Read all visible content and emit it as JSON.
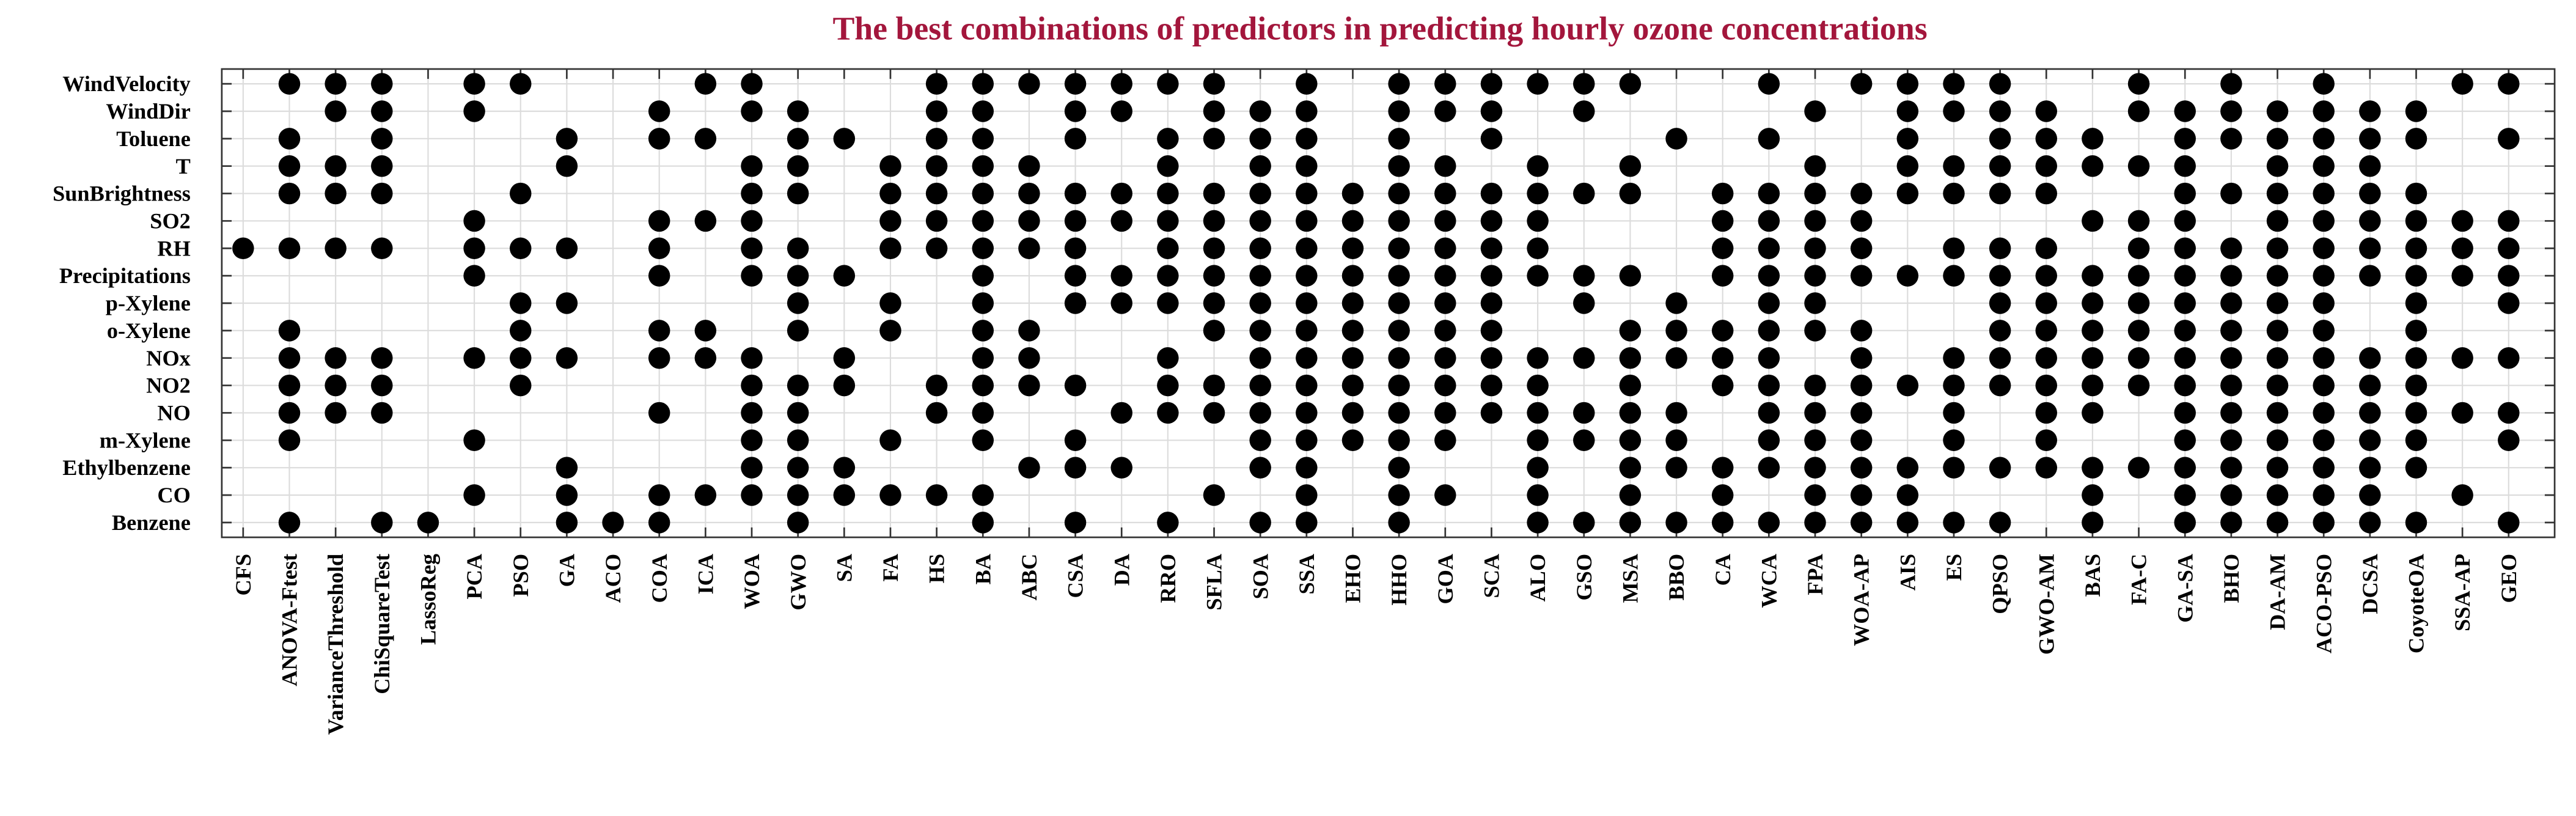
{
  "chart_data": {
    "type": "dot_matrix",
    "title": "The best combinations of predictors in predicting hourly ozone concentrations",
    "title_color": "#a3163c",
    "color": "#000000",
    "grid": true,
    "rows": [
      "WindVelocity",
      "WindDir",
      "Toluene",
      "T",
      "SunBrightness",
      "SO2",
      "RH",
      "Precipitations",
      "p-Xylene",
      "o-Xylene",
      "NOx",
      "NO2",
      "NO",
      "m-Xylene",
      "Ethylbenzene",
      "CO",
      "Benzene"
    ],
    "categories": [
      "CFS",
      "ANOVA-Ftest",
      "VarianceThreshold",
      "ChiSquareTest",
      "LassoReg",
      "PCA",
      "PSO",
      "GA",
      "ACO",
      "COA",
      "ICA",
      "WOA",
      "GWO",
      "SA",
      "FA",
      "HS",
      "BA",
      "ABC",
      "CSA",
      "DA",
      "RRO",
      "SFLA",
      "SOA",
      "SSA",
      "EHO",
      "HHO",
      "GOA",
      "SCA",
      "ALO",
      "GSO",
      "MSA",
      "BBO",
      "CA",
      "WCA",
      "FPA",
      "WOA-AP",
      "AIS",
      "ES",
      "QPSO",
      "GWO-AM",
      "BAS",
      "FA-C",
      "GA-SA",
      "BHO",
      "DA-AM",
      "ACO-PSO",
      "DCSA",
      "CoyoteOA",
      "SSA-AP",
      "GEO"
    ],
    "matrix": [
      [
        0,
        1,
        1,
        1,
        0,
        1,
        1,
        0,
        0,
        0,
        1,
        1,
        0,
        0,
        0,
        1,
        1,
        1,
        1,
        1,
        1,
        1,
        0,
        1,
        0,
        1,
        1,
        1,
        1,
        1,
        1,
        0,
        0,
        1,
        0,
        1,
        1,
        1,
        1,
        0,
        0,
        1,
        0,
        1,
        0,
        1,
        0,
        0,
        1,
        1
      ],
      [
        0,
        0,
        1,
        1,
        0,
        1,
        0,
        0,
        0,
        1,
        0,
        1,
        1,
        0,
        0,
        1,
        1,
        0,
        1,
        1,
        0,
        1,
        1,
        1,
        0,
        1,
        1,
        1,
        0,
        1,
        0,
        0,
        0,
        0,
        1,
        0,
        1,
        1,
        1,
        1,
        0,
        1,
        1,
        1,
        1,
        1,
        1,
        1,
        0,
        0
      ],
      [
        0,
        1,
        0,
        1,
        0,
        0,
        0,
        1,
        0,
        1,
        1,
        0,
        1,
        1,
        0,
        1,
        1,
        0,
        1,
        0,
        1,
        1,
        1,
        1,
        0,
        1,
        0,
        1,
        0,
        0,
        0,
        1,
        0,
        1,
        0,
        0,
        1,
        0,
        1,
        1,
        1,
        0,
        1,
        1,
        1,
        1,
        1,
        1,
        0,
        1
      ],
      [
        0,
        1,
        1,
        1,
        0,
        0,
        0,
        1,
        0,
        0,
        0,
        1,
        1,
        0,
        1,
        1,
        1,
        1,
        0,
        0,
        1,
        0,
        1,
        1,
        0,
        1,
        1,
        0,
        1,
        0,
        1,
        0,
        0,
        0,
        1,
        0,
        1,
        1,
        1,
        1,
        1,
        1,
        1,
        0,
        1,
        1,
        1,
        0,
        0,
        0
      ],
      [
        0,
        1,
        1,
        1,
        0,
        0,
        1,
        0,
        0,
        0,
        0,
        1,
        1,
        0,
        1,
        1,
        1,
        1,
        1,
        1,
        1,
        1,
        1,
        1,
        1,
        1,
        1,
        1,
        1,
        1,
        1,
        0,
        1,
        1,
        1,
        1,
        1,
        1,
        1,
        1,
        0,
        0,
        1,
        1,
        1,
        1,
        1,
        1,
        0,
        0
      ],
      [
        0,
        0,
        0,
        0,
        0,
        1,
        0,
        0,
        0,
        1,
        1,
        1,
        0,
        0,
        1,
        1,
        1,
        1,
        1,
        1,
        1,
        1,
        1,
        1,
        1,
        1,
        1,
        1,
        1,
        0,
        0,
        0,
        1,
        1,
        1,
        1,
        0,
        0,
        0,
        0,
        1,
        1,
        1,
        0,
        1,
        1,
        1,
        1,
        1,
        1
      ],
      [
        1,
        1,
        1,
        1,
        0,
        1,
        1,
        1,
        0,
        1,
        0,
        1,
        1,
        0,
        1,
        1,
        1,
        1,
        1,
        0,
        1,
        1,
        1,
        1,
        1,
        1,
        1,
        1,
        1,
        0,
        0,
        0,
        1,
        1,
        1,
        1,
        0,
        1,
        1,
        1,
        0,
        1,
        1,
        1,
        1,
        1,
        1,
        1,
        1,
        1
      ],
      [
        0,
        0,
        0,
        0,
        0,
        1,
        0,
        0,
        0,
        1,
        0,
        1,
        1,
        1,
        0,
        0,
        1,
        0,
        1,
        1,
        1,
        1,
        1,
        1,
        1,
        1,
        1,
        1,
        1,
        1,
        1,
        0,
        1,
        1,
        1,
        1,
        1,
        1,
        1,
        1,
        1,
        1,
        1,
        1,
        1,
        1,
        1,
        1,
        1,
        1
      ],
      [
        0,
        0,
        0,
        0,
        0,
        0,
        1,
        1,
        0,
        0,
        0,
        0,
        1,
        0,
        1,
        0,
        1,
        0,
        1,
        1,
        1,
        1,
        1,
        1,
        1,
        1,
        1,
        1,
        0,
        1,
        0,
        1,
        0,
        1,
        1,
        0,
        0,
        0,
        1,
        1,
        1,
        1,
        1,
        1,
        1,
        1,
        0,
        1,
        0,
        1
      ],
      [
        0,
        1,
        0,
        0,
        0,
        0,
        1,
        0,
        0,
        1,
        1,
        0,
        1,
        0,
        1,
        0,
        1,
        1,
        0,
        0,
        0,
        1,
        1,
        1,
        1,
        1,
        1,
        1,
        0,
        0,
        1,
        1,
        1,
        1,
        1,
        1,
        0,
        0,
        1,
        1,
        1,
        1,
        1,
        1,
        1,
        1,
        0,
        1,
        0,
        0
      ],
      [
        0,
        1,
        1,
        1,
        0,
        1,
        1,
        1,
        0,
        1,
        1,
        1,
        0,
        1,
        0,
        0,
        1,
        1,
        0,
        0,
        1,
        0,
        1,
        1,
        1,
        1,
        1,
        1,
        1,
        1,
        1,
        1,
        1,
        1,
        0,
        1,
        0,
        1,
        1,
        1,
        1,
        1,
        1,
        1,
        1,
        1,
        1,
        1,
        1,
        1
      ],
      [
        0,
        1,
        1,
        1,
        0,
        0,
        1,
        0,
        0,
        0,
        0,
        1,
        1,
        1,
        0,
        1,
        1,
        1,
        1,
        0,
        1,
        1,
        1,
        1,
        1,
        1,
        1,
        1,
        1,
        0,
        1,
        0,
        1,
        1,
        1,
        1,
        1,
        1,
        1,
        1,
        1,
        1,
        1,
        1,
        1,
        1,
        1,
        1,
        0,
        0
      ],
      [
        0,
        1,
        1,
        1,
        0,
        0,
        0,
        0,
        0,
        1,
        0,
        1,
        1,
        0,
        0,
        1,
        1,
        0,
        0,
        1,
        1,
        1,
        1,
        1,
        1,
        1,
        1,
        1,
        1,
        1,
        1,
        1,
        0,
        1,
        1,
        1,
        0,
        1,
        0,
        1,
        1,
        0,
        1,
        1,
        1,
        1,
        1,
        1,
        1,
        1
      ],
      [
        0,
        1,
        0,
        0,
        0,
        1,
        0,
        0,
        0,
        0,
        0,
        1,
        1,
        0,
        1,
        0,
        1,
        0,
        1,
        0,
        0,
        0,
        1,
        1,
        1,
        1,
        1,
        0,
        1,
        1,
        1,
        1,
        0,
        1,
        1,
        1,
        0,
        1,
        0,
        1,
        0,
        0,
        1,
        1,
        1,
        1,
        1,
        1,
        0,
        1
      ],
      [
        0,
        0,
        0,
        0,
        0,
        0,
        0,
        1,
        0,
        0,
        0,
        1,
        1,
        1,
        0,
        0,
        0,
        1,
        1,
        1,
        0,
        0,
        1,
        1,
        0,
        1,
        0,
        0,
        1,
        0,
        1,
        1,
        1,
        1,
        1,
        1,
        1,
        1,
        1,
        1,
        1,
        1,
        1,
        1,
        1,
        1,
        1,
        1,
        0,
        0
      ],
      [
        0,
        0,
        0,
        0,
        0,
        1,
        0,
        1,
        0,
        1,
        1,
        1,
        1,
        1,
        1,
        1,
        1,
        0,
        0,
        0,
        0,
        1,
        0,
        1,
        0,
        1,
        1,
        0,
        1,
        0,
        1,
        0,
        1,
        0,
        1,
        1,
        1,
        0,
        0,
        0,
        1,
        0,
        1,
        1,
        1,
        1,
        1,
        0,
        1,
        0
      ],
      [
        0,
        1,
        0,
        1,
        1,
        0,
        0,
        1,
        1,
        1,
        0,
        0,
        1,
        0,
        0,
        0,
        1,
        0,
        1,
        0,
        1,
        0,
        1,
        1,
        0,
        1,
        0,
        0,
        1,
        1,
        1,
        1,
        1,
        1,
        1,
        1,
        1,
        1,
        1,
        0,
        1,
        0,
        1,
        1,
        1,
        1,
        1,
        1,
        0,
        1
      ]
    ]
  }
}
